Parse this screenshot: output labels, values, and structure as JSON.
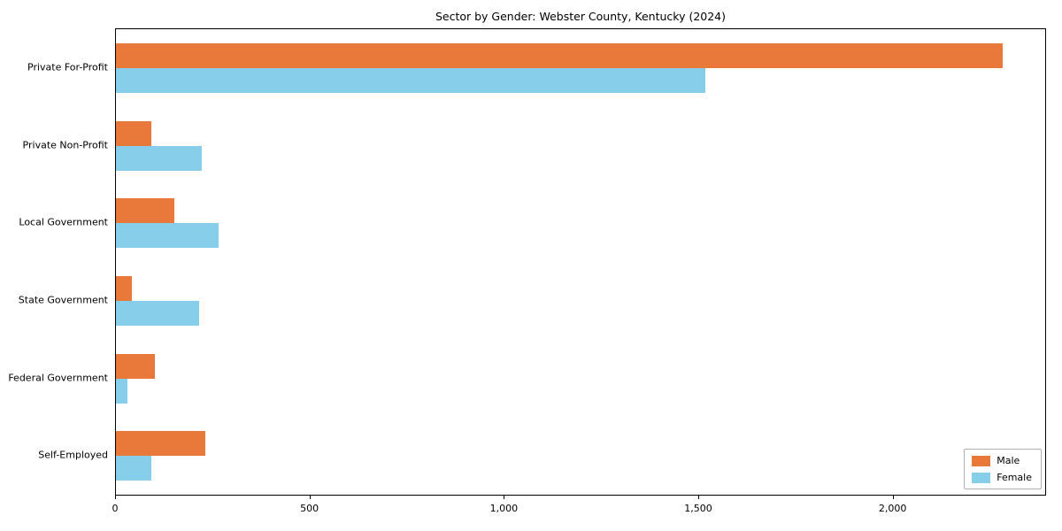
{
  "chart_data": {
    "type": "bar",
    "orientation": "horizontal",
    "title": "Sector by Gender: Webster County, Kentucky (2024)",
    "categories": [
      "Private For-Profit",
      "Private Non-Profit",
      "Local Government",
      "State Government",
      "Federal Government",
      "Self-Employed"
    ],
    "series": [
      {
        "name": "Male",
        "color": "#e8793b",
        "values": [
          2280,
          90,
          150,
          40,
          100,
          230
        ]
      },
      {
        "name": "Female",
        "color": "#87ceeb",
        "values": [
          1515,
          220,
          265,
          215,
          30,
          90
        ]
      }
    ],
    "xlabel": "",
    "ylabel": "",
    "xlim": [
      0,
      2390
    ],
    "xticks": [
      {
        "value": 0,
        "label": "0"
      },
      {
        "value": 500,
        "label": "500"
      },
      {
        "value": 1000,
        "label": "1,000"
      },
      {
        "value": 1500,
        "label": "1,500"
      },
      {
        "value": 2000,
        "label": "2,000"
      }
    ],
    "grid": false,
    "legend_position": "lower right"
  }
}
